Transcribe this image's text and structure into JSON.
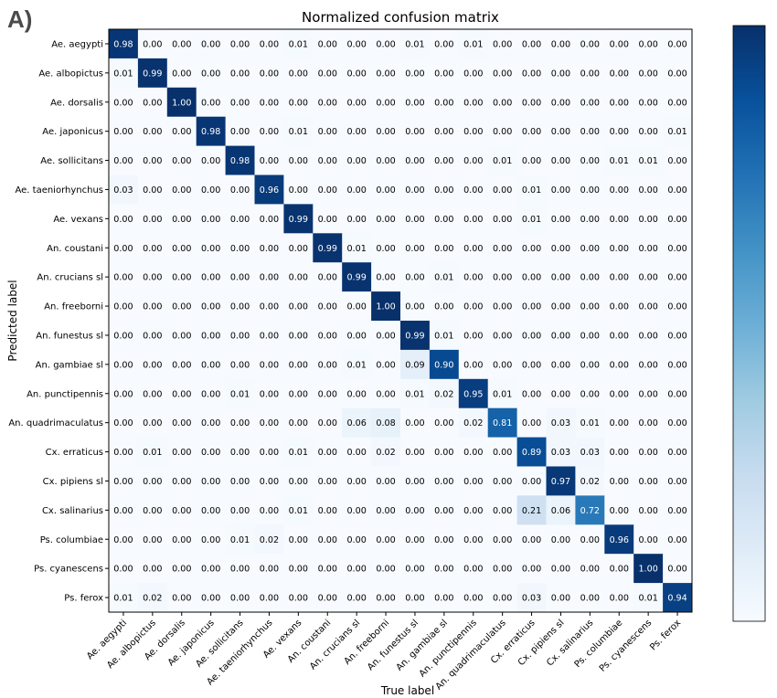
{
  "panel_tag": "A)",
  "chart_data": {
    "type": "heatmap",
    "title": "Normalized confusion matrix",
    "xlabel": "True label",
    "ylabel": "Predicted label",
    "value_range": [
      0,
      1
    ],
    "colormap": "Blues",
    "colorbar": {
      "min": 0,
      "max": 1
    },
    "x_categories": [
      "Ae. aegypti",
      "Ae. albopictus",
      "Ae. dorsalis",
      "Ae. japonicus",
      "Ae. sollicitans",
      "Ae. taeniorhynchus",
      "Ae. vexans",
      "An. coustani",
      "An. crucians sl",
      "An. freeborni",
      "An. funestus sl",
      "An. gambiae sl",
      "An. punctipennis",
      "An. quadrimaculatus",
      "Cx. erraticus",
      "Cx. pipiens sl",
      "Cx. salinarius",
      "Ps. columbiae",
      "Ps. cyanescens",
      "Ps. ferox"
    ],
    "y_categories": [
      "Ae. aegypti",
      "Ae. albopictus",
      "Ae. dorsalis",
      "Ae. japonicus",
      "Ae. sollicitans",
      "Ae. taeniorhynchus",
      "Ae. vexans",
      "An. coustani",
      "An. crucians sl",
      "An. freeborni",
      "An. funestus sl",
      "An. gambiae sl",
      "An. punctipennis",
      "An. quadrimaculatus",
      "Cx. erraticus",
      "Cx. pipiens sl",
      "Cx. salinarius",
      "Ps. columbiae",
      "Ps. cyanescens",
      "Ps. ferox"
    ],
    "values": [
      [
        0.98,
        0.0,
        0.0,
        0.0,
        0.0,
        0.0,
        0.01,
        0.0,
        0.0,
        0.0,
        0.01,
        0.0,
        0.01,
        0.0,
        0.0,
        0.0,
        0.0,
        0.0,
        0.0,
        0.0
      ],
      [
        0.01,
        0.99,
        0.0,
        0.0,
        0.0,
        0.0,
        0.0,
        0.0,
        0.0,
        0.0,
        0.0,
        0.0,
        0.0,
        0.0,
        0.0,
        0.0,
        0.0,
        0.0,
        0.0,
        0.0
      ],
      [
        0.0,
        0.0,
        1.0,
        0.0,
        0.0,
        0.0,
        0.0,
        0.0,
        0.0,
        0.0,
        0.0,
        0.0,
        0.0,
        0.0,
        0.0,
        0.0,
        0.0,
        0.0,
        0.0,
        0.0
      ],
      [
        0.0,
        0.0,
        0.0,
        0.98,
        0.0,
        0.0,
        0.01,
        0.0,
        0.0,
        0.0,
        0.0,
        0.0,
        0.0,
        0.0,
        0.0,
        0.0,
        0.0,
        0.0,
        0.0,
        0.01
      ],
      [
        0.0,
        0.0,
        0.0,
        0.0,
        0.98,
        0.0,
        0.0,
        0.0,
        0.0,
        0.0,
        0.0,
        0.0,
        0.0,
        0.01,
        0.0,
        0.0,
        0.0,
        0.01,
        0.01,
        0.0
      ],
      [
        0.03,
        0.0,
        0.0,
        0.0,
        0.0,
        0.96,
        0.0,
        0.0,
        0.0,
        0.0,
        0.0,
        0.0,
        0.0,
        0.0,
        0.01,
        0.0,
        0.0,
        0.0,
        0.0,
        0.0
      ],
      [
        0.0,
        0.0,
        0.0,
        0.0,
        0.0,
        0.0,
        0.99,
        0.0,
        0.0,
        0.0,
        0.0,
        0.0,
        0.0,
        0.0,
        0.01,
        0.0,
        0.0,
        0.0,
        0.0,
        0.0
      ],
      [
        0.0,
        0.0,
        0.0,
        0.0,
        0.0,
        0.0,
        0.0,
        0.99,
        0.01,
        0.0,
        0.0,
        0.0,
        0.0,
        0.0,
        0.0,
        0.0,
        0.0,
        0.0,
        0.0,
        0.0
      ],
      [
        0.0,
        0.0,
        0.0,
        0.0,
        0.0,
        0.0,
        0.0,
        0.0,
        0.99,
        0.0,
        0.0,
        0.01,
        0.0,
        0.0,
        0.0,
        0.0,
        0.0,
        0.0,
        0.0,
        0.0
      ],
      [
        0.0,
        0.0,
        0.0,
        0.0,
        0.0,
        0.0,
        0.0,
        0.0,
        0.0,
        1.0,
        0.0,
        0.0,
        0.0,
        0.0,
        0.0,
        0.0,
        0.0,
        0.0,
        0.0,
        0.0
      ],
      [
        0.0,
        0.0,
        0.0,
        0.0,
        0.0,
        0.0,
        0.0,
        0.0,
        0.0,
        0.0,
        0.99,
        0.01,
        0.0,
        0.0,
        0.0,
        0.0,
        0.0,
        0.0,
        0.0,
        0.0
      ],
      [
        0.0,
        0.0,
        0.0,
        0.0,
        0.0,
        0.0,
        0.0,
        0.0,
        0.01,
        0.0,
        0.09,
        0.9,
        0.0,
        0.0,
        0.0,
        0.0,
        0.0,
        0.0,
        0.0,
        0.0
      ],
      [
        0.0,
        0.0,
        0.0,
        0.0,
        0.01,
        0.0,
        0.0,
        0.0,
        0.0,
        0.0,
        0.01,
        0.02,
        0.95,
        0.01,
        0.0,
        0.0,
        0.0,
        0.0,
        0.0,
        0.0
      ],
      [
        0.0,
        0.0,
        0.0,
        0.0,
        0.0,
        0.0,
        0.0,
        0.0,
        0.06,
        0.08,
        0.0,
        0.0,
        0.02,
        0.81,
        0.0,
        0.03,
        0.01,
        0.0,
        0.0,
        0.0
      ],
      [
        0.0,
        0.01,
        0.0,
        0.0,
        0.0,
        0.0,
        0.01,
        0.0,
        0.0,
        0.02,
        0.0,
        0.0,
        0.0,
        0.0,
        0.89,
        0.03,
        0.03,
        0.0,
        0.0,
        0.0
      ],
      [
        0.0,
        0.0,
        0.0,
        0.0,
        0.0,
        0.0,
        0.0,
        0.0,
        0.0,
        0.0,
        0.0,
        0.0,
        0.0,
        0.0,
        0.0,
        0.97,
        0.02,
        0.0,
        0.0,
        0.0
      ],
      [
        0.0,
        0.0,
        0.0,
        0.0,
        0.0,
        0.0,
        0.01,
        0.0,
        0.0,
        0.0,
        0.0,
        0.0,
        0.0,
        0.0,
        0.21,
        0.06,
        0.72,
        0.0,
        0.0,
        0.0
      ],
      [
        0.0,
        0.0,
        0.0,
        0.0,
        0.01,
        0.02,
        0.0,
        0.0,
        0.0,
        0.0,
        0.0,
        0.0,
        0.0,
        0.0,
        0.0,
        0.0,
        0.0,
        0.96,
        0.0,
        0.0
      ],
      [
        0.0,
        0.0,
        0.0,
        0.0,
        0.0,
        0.0,
        0.0,
        0.0,
        0.0,
        0.0,
        0.0,
        0.0,
        0.0,
        0.0,
        0.0,
        0.0,
        0.0,
        0.0,
        1.0,
        0.0
      ],
      [
        0.01,
        0.02,
        0.0,
        0.0,
        0.0,
        0.0,
        0.0,
        0.0,
        0.0,
        0.0,
        0.0,
        0.0,
        0.0,
        0.0,
        0.03,
        0.0,
        0.0,
        0.0,
        0.01,
        0.94
      ]
    ]
  }
}
